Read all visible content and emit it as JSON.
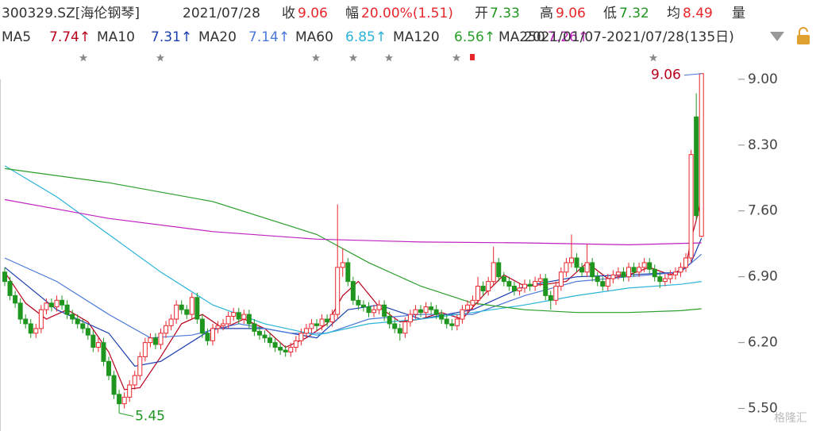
{
  "chart_data": {
    "type": "candlestick",
    "header": {
      "code": "300329.SZ[海伦钢琴]",
      "date": "2021/07/28",
      "close_label": "收",
      "close": "9.06",
      "change_label": "幅",
      "change": "20.00%(1.51)",
      "open_label": "开",
      "open": "7.33",
      "high_label": "高",
      "high": "9.06",
      "low_label": "低",
      "low": "7.32",
      "avg_label": "均",
      "avg": "8.49",
      "volume_label": "量",
      "range": "2021/01/07-2021/07/28(135日)"
    },
    "up_color": "#e8262c",
    "down_color": "#1f961f",
    "ylim": [
      5.37,
      9.1
    ],
    "yticks": [
      {
        "value": 9.0,
        "label": "9.00"
      },
      {
        "value": 8.3,
        "label": "8.30"
      },
      {
        "value": 7.6,
        "label": "7.60"
      },
      {
        "value": 6.9,
        "label": "6.90"
      },
      {
        "value": 6.2,
        "label": "6.20"
      },
      {
        "value": 5.5,
        "label": "5.50"
      }
    ],
    "candles": {
      "open": [
        6.95,
        6.85,
        6.7,
        6.62,
        6.45,
        6.4,
        6.3,
        6.35,
        6.55,
        6.62,
        6.58,
        6.65,
        6.6,
        6.5,
        6.45,
        6.4,
        6.35,
        6.28,
        6.15,
        6.2,
        6.0,
        5.85,
        5.65,
        5.55,
        5.62,
        5.75,
        5.85,
        6.05,
        6.2,
        6.25,
        6.18,
        6.3,
        6.38,
        6.45,
        6.6,
        6.55,
        6.5,
        6.68,
        6.45,
        6.3,
        6.22,
        6.35,
        6.38,
        6.4,
        6.48,
        6.52,
        6.45,
        6.5,
        6.4,
        6.32,
        6.28,
        6.25,
        6.2,
        6.15,
        6.12,
        6.1,
        6.15,
        6.22,
        6.3,
        6.35,
        6.4,
        6.38,
        6.45,
        6.42,
        6.5,
        7.0,
        7.05,
        6.85,
        6.65,
        6.6,
        6.58,
        6.52,
        6.55,
        6.6,
        6.48,
        6.4,
        6.35,
        6.3,
        6.42,
        6.5,
        6.55,
        6.52,
        6.58,
        6.55,
        6.5,
        6.45,
        6.4,
        6.38,
        6.45,
        6.55,
        6.6,
        6.65,
        6.8,
        6.75,
        6.85,
        7.05,
        6.9,
        6.85,
        6.8,
        6.75,
        6.78,
        6.82,
        6.8,
        6.85,
        6.88,
        6.7,
        6.65,
        6.8,
        6.95,
        7.05,
        7.1,
        7.0,
        6.95,
        7.05,
        6.9,
        6.85,
        6.8,
        6.88,
        6.92,
        6.95,
        6.9,
        7.0,
        6.95,
        7.0,
        7.05,
        6.98,
        6.9,
        6.85,
        6.88,
        6.92,
        6.95,
        7.0,
        7.1,
        8.6,
        7.33
      ],
      "high": [
        7.0,
        6.9,
        6.75,
        6.67,
        6.5,
        6.45,
        6.4,
        6.6,
        6.67,
        6.67,
        6.7,
        6.7,
        6.65,
        6.55,
        6.5,
        6.45,
        6.4,
        6.33,
        6.25,
        6.25,
        6.05,
        5.9,
        5.7,
        5.67,
        5.8,
        5.9,
        6.1,
        6.25,
        6.3,
        6.3,
        6.35,
        6.43,
        6.5,
        6.65,
        6.65,
        6.6,
        6.73,
        6.73,
        6.5,
        6.35,
        6.4,
        6.43,
        6.45,
        6.53,
        6.57,
        6.57,
        6.55,
        6.55,
        6.45,
        6.37,
        6.33,
        6.3,
        6.25,
        6.2,
        6.17,
        6.2,
        6.27,
        6.35,
        6.4,
        6.45,
        6.45,
        6.5,
        6.5,
        6.55,
        7.67,
        7.2,
        7.1,
        6.9,
        6.7,
        6.65,
        6.63,
        6.6,
        6.65,
        6.65,
        6.53,
        6.45,
        6.4,
        6.47,
        6.55,
        6.6,
        6.6,
        6.63,
        6.63,
        6.6,
        6.55,
        6.5,
        6.45,
        6.5,
        6.6,
        6.65,
        6.7,
        6.9,
        6.85,
        6.9,
        7.22,
        7.1,
        6.95,
        6.9,
        6.85,
        6.83,
        6.87,
        6.87,
        6.9,
        6.93,
        6.93,
        6.75,
        6.85,
        7.0,
        7.1,
        7.35,
        7.15,
        7.05,
        7.25,
        7.1,
        6.95,
        6.9,
        6.93,
        6.97,
        7.0,
        7.0,
        7.05,
        7.05,
        7.05,
        7.1,
        7.1,
        7.03,
        6.95,
        6.93,
        6.97,
        7.0,
        7.05,
        7.15,
        8.25,
        8.85,
        9.06
      ],
      "low": [
        6.8,
        6.65,
        6.57,
        6.4,
        6.35,
        6.25,
        6.25,
        6.3,
        6.5,
        6.53,
        6.53,
        6.55,
        6.45,
        6.4,
        6.35,
        6.3,
        6.23,
        6.1,
        6.1,
        5.95,
        5.8,
        5.6,
        5.45,
        5.5,
        5.57,
        5.7,
        5.8,
        6.0,
        6.15,
        6.13,
        6.13,
        6.25,
        6.33,
        6.4,
        6.5,
        6.45,
        6.45,
        6.4,
        6.25,
        6.17,
        6.17,
        6.3,
        6.33,
        6.35,
        6.43,
        6.4,
        6.4,
        6.35,
        6.27,
        6.23,
        6.2,
        6.15,
        6.1,
        6.07,
        6.05,
        6.05,
        6.1,
        6.17,
        6.25,
        6.3,
        6.33,
        6.33,
        6.37,
        6.37,
        6.45,
        6.9,
        6.8,
        6.6,
        6.55,
        6.53,
        6.47,
        6.47,
        6.5,
        6.43,
        6.35,
        6.3,
        6.22,
        6.25,
        6.37,
        6.45,
        6.47,
        6.47,
        6.5,
        6.45,
        6.4,
        6.35,
        6.33,
        6.33,
        6.4,
        6.5,
        6.55,
        6.6,
        6.7,
        6.7,
        6.8,
        6.85,
        6.8,
        6.75,
        6.7,
        6.7,
        6.73,
        6.75,
        6.75,
        6.8,
        6.65,
        6.55,
        6.6,
        6.75,
        6.9,
        7.0,
        6.95,
        6.9,
        6.9,
        6.85,
        6.8,
        6.75,
        6.75,
        6.83,
        6.87,
        6.85,
        6.85,
        6.9,
        6.9,
        6.95,
        6.93,
        6.85,
        6.78,
        6.8,
        6.83,
        6.87,
        6.9,
        6.95,
        7.05,
        7.5,
        7.32
      ],
      "close": [
        6.85,
        6.7,
        6.62,
        6.45,
        6.4,
        6.3,
        6.35,
        6.55,
        6.62,
        6.58,
        6.65,
        6.6,
        6.5,
        6.45,
        6.4,
        6.35,
        6.28,
        6.15,
        6.2,
        6.0,
        5.85,
        5.65,
        5.55,
        5.62,
        5.75,
        5.85,
        6.05,
        6.2,
        6.25,
        6.18,
        6.3,
        6.38,
        6.45,
        6.6,
        6.55,
        6.5,
        6.68,
        6.45,
        6.3,
        6.22,
        6.35,
        6.38,
        6.4,
        6.48,
        6.52,
        6.45,
        6.5,
        6.4,
        6.32,
        6.28,
        6.25,
        6.2,
        6.15,
        6.12,
        6.1,
        6.15,
        6.22,
        6.3,
        6.35,
        6.4,
        6.38,
        6.45,
        6.42,
        6.5,
        7.0,
        7.05,
        6.85,
        6.65,
        6.6,
        6.58,
        6.52,
        6.55,
        6.6,
        6.48,
        6.4,
        6.35,
        6.3,
        6.42,
        6.5,
        6.55,
        6.52,
        6.58,
        6.55,
        6.5,
        6.45,
        6.4,
        6.38,
        6.45,
        6.55,
        6.6,
        6.65,
        6.8,
        6.75,
        6.85,
        7.05,
        6.9,
        6.85,
        6.8,
        6.75,
        6.78,
        6.82,
        6.8,
        6.85,
        6.88,
        6.7,
        6.65,
        6.8,
        6.95,
        7.05,
        7.1,
        7.0,
        6.95,
        7.05,
        6.9,
        6.85,
        6.8,
        6.88,
        6.92,
        6.95,
        6.9,
        7.0,
        6.95,
        7.0,
        7.05,
        6.98,
        6.9,
        6.85,
        6.88,
        6.92,
        6.95,
        7.0,
        7.1,
        8.2,
        7.55,
        9.06
      ]
    },
    "series": [
      {
        "name": "MA5",
        "label": "7.74↑",
        "color": "#b8001c",
        "x": [
          0,
          4,
          8,
          12,
          16,
          20,
          23,
          26,
          30,
          34,
          38,
          42,
          46,
          50,
          54,
          58,
          62,
          65,
          68,
          72,
          76,
          80,
          84,
          88,
          92,
          96,
          100,
          104,
          108,
          112,
          116,
          120,
          124,
          128,
          131,
          132,
          133,
          134
        ],
        "values": [
          6.95,
          6.62,
          6.45,
          6.55,
          6.42,
          6.1,
          5.7,
          5.72,
          6.05,
          6.4,
          6.5,
          6.35,
          6.45,
          6.35,
          6.15,
          6.25,
          6.4,
          6.7,
          6.85,
          6.58,
          6.42,
          6.45,
          6.52,
          6.45,
          6.7,
          6.92,
          6.8,
          6.82,
          6.85,
          7.05,
          6.88,
          6.92,
          7.0,
          6.92,
          7.0,
          7.3,
          7.5,
          7.74
        ]
      },
      {
        "name": "MA10",
        "label": "7.31↑",
        "color": "#1c3fb0",
        "x": [
          0,
          10,
          20,
          25,
          30,
          40,
          50,
          60,
          66,
          72,
          80,
          90,
          100,
          110,
          120,
          130,
          132,
          134
        ],
        "values": [
          7.0,
          6.55,
          6.3,
          5.95,
          6.0,
          6.35,
          6.35,
          6.25,
          6.55,
          6.6,
          6.45,
          6.55,
          6.8,
          6.9,
          6.92,
          6.95,
          7.05,
          7.31
        ]
      },
      {
        "name": "MA20",
        "label": "7.14↑",
        "color": "#4a78d8",
        "x": [
          0,
          10,
          20,
          28,
          36,
          45,
          55,
          62,
          70,
          80,
          90,
          100,
          110,
          120,
          130,
          134
        ],
        "values": [
          7.1,
          6.85,
          6.5,
          6.25,
          6.28,
          6.4,
          6.3,
          6.3,
          6.45,
          6.5,
          6.5,
          6.7,
          6.85,
          6.9,
          6.95,
          7.14
        ]
      },
      {
        "name": "MA60",
        "label": "6.85↑",
        "color": "#2ab4d8",
        "x": [
          0,
          10,
          20,
          30,
          40,
          50,
          60,
          70,
          80,
          90,
          100,
          110,
          120,
          130,
          134
        ],
        "values": [
          8.08,
          7.75,
          7.35,
          6.95,
          6.6,
          6.4,
          6.28,
          6.4,
          6.45,
          6.52,
          6.6,
          6.7,
          6.78,
          6.82,
          6.85
        ]
      },
      {
        "name": "MA120",
        "label": "6.56↑",
        "color": "#2a9e2a",
        "x": [
          0,
          20,
          40,
          60,
          70,
          80,
          90,
          100,
          110,
          120,
          130,
          134
        ],
        "values": [
          8.05,
          7.9,
          7.7,
          7.35,
          7.05,
          6.8,
          6.62,
          6.55,
          6.52,
          6.52,
          6.54,
          6.56
        ]
      },
      {
        "name": "MA250",
        "label": "7.26↑",
        "color": "#c020c0",
        "x": [
          0,
          20,
          40,
          60,
          80,
          100,
          120,
          134
        ],
        "values": [
          7.72,
          7.52,
          7.38,
          7.3,
          7.27,
          7.26,
          7.24,
          7.26
        ]
      }
    ],
    "max_label": "9.06",
    "min_label": "5.45",
    "watermark": "格隆汇"
  }
}
